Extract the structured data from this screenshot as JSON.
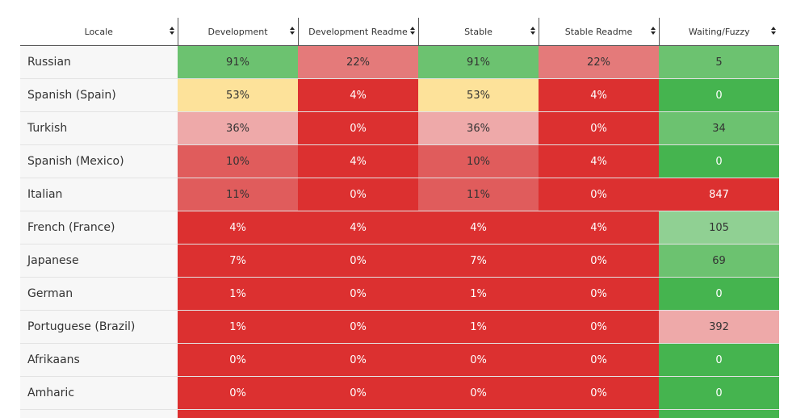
{
  "colors": {
    "green_dark": "#45b44f",
    "green_mid": "#6cc270",
    "green_light": "#90d093",
    "yellow": "#fde29a",
    "pink": "#eea9a9",
    "red_light": "#e47a7a",
    "red_mid": "#e05c5c",
    "red": "#dc3030"
  },
  "table": {
    "headers": [
      "Locale",
      "Development",
      "Development Readme",
      "Stable",
      "Stable Readme",
      "Waiting/Fuzzy"
    ],
    "rows": [
      {
        "locale": "Russian",
        "cells": [
          {
            "v": "91%",
            "c": "#6cc270",
            "dark": false
          },
          {
            "v": "22%",
            "c": "#e47a7a",
            "dark": false
          },
          {
            "v": "91%",
            "c": "#6cc270",
            "dark": false
          },
          {
            "v": "22%",
            "c": "#e47a7a",
            "dark": false
          },
          {
            "v": "5",
            "c": "#6cc270",
            "dark": false
          }
        ]
      },
      {
        "locale": "Spanish (Spain)",
        "cells": [
          {
            "v": "53%",
            "c": "#fde29a",
            "dark": false
          },
          {
            "v": "4%",
            "c": "#dc3030",
            "dark": true
          },
          {
            "v": "53%",
            "c": "#fde29a",
            "dark": false
          },
          {
            "v": "4%",
            "c": "#dc3030",
            "dark": true
          },
          {
            "v": "0",
            "c": "#45b44f",
            "dark": true
          }
        ]
      },
      {
        "locale": "Turkish",
        "cells": [
          {
            "v": "36%",
            "c": "#eea9a9",
            "dark": false
          },
          {
            "v": "0%",
            "c": "#dc3030",
            "dark": true
          },
          {
            "v": "36%",
            "c": "#eea9a9",
            "dark": false
          },
          {
            "v": "0%",
            "c": "#dc3030",
            "dark": true
          },
          {
            "v": "34",
            "c": "#6cc270",
            "dark": false
          }
        ]
      },
      {
        "locale": "Spanish (Mexico)",
        "cells": [
          {
            "v": "10%",
            "c": "#e05c5c",
            "dark": false
          },
          {
            "v": "4%",
            "c": "#dc3030",
            "dark": true
          },
          {
            "v": "10%",
            "c": "#e05c5c",
            "dark": false
          },
          {
            "v": "4%",
            "c": "#dc3030",
            "dark": true
          },
          {
            "v": "0",
            "c": "#45b44f",
            "dark": true
          }
        ]
      },
      {
        "locale": "Italian",
        "cells": [
          {
            "v": "11%",
            "c": "#e05c5c",
            "dark": false
          },
          {
            "v": "0%",
            "c": "#dc3030",
            "dark": true
          },
          {
            "v": "11%",
            "c": "#e05c5c",
            "dark": false
          },
          {
            "v": "0%",
            "c": "#dc3030",
            "dark": true
          },
          {
            "v": "847",
            "c": "#dc3030",
            "dark": true
          }
        ]
      },
      {
        "locale": "French (France)",
        "cells": [
          {
            "v": "4%",
            "c": "#dc3030",
            "dark": true
          },
          {
            "v": "4%",
            "c": "#dc3030",
            "dark": true
          },
          {
            "v": "4%",
            "c": "#dc3030",
            "dark": true
          },
          {
            "v": "4%",
            "c": "#dc3030",
            "dark": true
          },
          {
            "v": "105",
            "c": "#90d093",
            "dark": false
          }
        ]
      },
      {
        "locale": "Japanese",
        "cells": [
          {
            "v": "7%",
            "c": "#dc3030",
            "dark": true
          },
          {
            "v": "0%",
            "c": "#dc3030",
            "dark": true
          },
          {
            "v": "7%",
            "c": "#dc3030",
            "dark": true
          },
          {
            "v": "0%",
            "c": "#dc3030",
            "dark": true
          },
          {
            "v": "69",
            "c": "#6cc270",
            "dark": false
          }
        ]
      },
      {
        "locale": "German",
        "cells": [
          {
            "v": "1%",
            "c": "#dc3030",
            "dark": true
          },
          {
            "v": "0%",
            "c": "#dc3030",
            "dark": true
          },
          {
            "v": "1%",
            "c": "#dc3030",
            "dark": true
          },
          {
            "v": "0%",
            "c": "#dc3030",
            "dark": true
          },
          {
            "v": "0",
            "c": "#45b44f",
            "dark": true
          }
        ]
      },
      {
        "locale": "Portuguese (Brazil)",
        "cells": [
          {
            "v": "1%",
            "c": "#dc3030",
            "dark": true
          },
          {
            "v": "0%",
            "c": "#dc3030",
            "dark": true
          },
          {
            "v": "1%",
            "c": "#dc3030",
            "dark": true
          },
          {
            "v": "0%",
            "c": "#dc3030",
            "dark": true
          },
          {
            "v": "392",
            "c": "#eea9a9",
            "dark": false
          }
        ]
      },
      {
        "locale": "Afrikaans",
        "cells": [
          {
            "v": "0%",
            "c": "#dc3030",
            "dark": true
          },
          {
            "v": "0%",
            "c": "#dc3030",
            "dark": true
          },
          {
            "v": "0%",
            "c": "#dc3030",
            "dark": true
          },
          {
            "v": "0%",
            "c": "#dc3030",
            "dark": true
          },
          {
            "v": "0",
            "c": "#45b44f",
            "dark": true
          }
        ]
      },
      {
        "locale": "Amharic",
        "cells": [
          {
            "v": "0%",
            "c": "#dc3030",
            "dark": true
          },
          {
            "v": "0%",
            "c": "#dc3030",
            "dark": true
          },
          {
            "v": "0%",
            "c": "#dc3030",
            "dark": true
          },
          {
            "v": "0%",
            "c": "#dc3030",
            "dark": true
          },
          {
            "v": "0",
            "c": "#45b44f",
            "dark": true
          }
        ]
      }
    ],
    "partial_row_colors": [
      "#f7f7f7",
      "#dc3030",
      "#dc3030",
      "#dc3030",
      "#dc3030",
      "#45b44f"
    ]
  }
}
